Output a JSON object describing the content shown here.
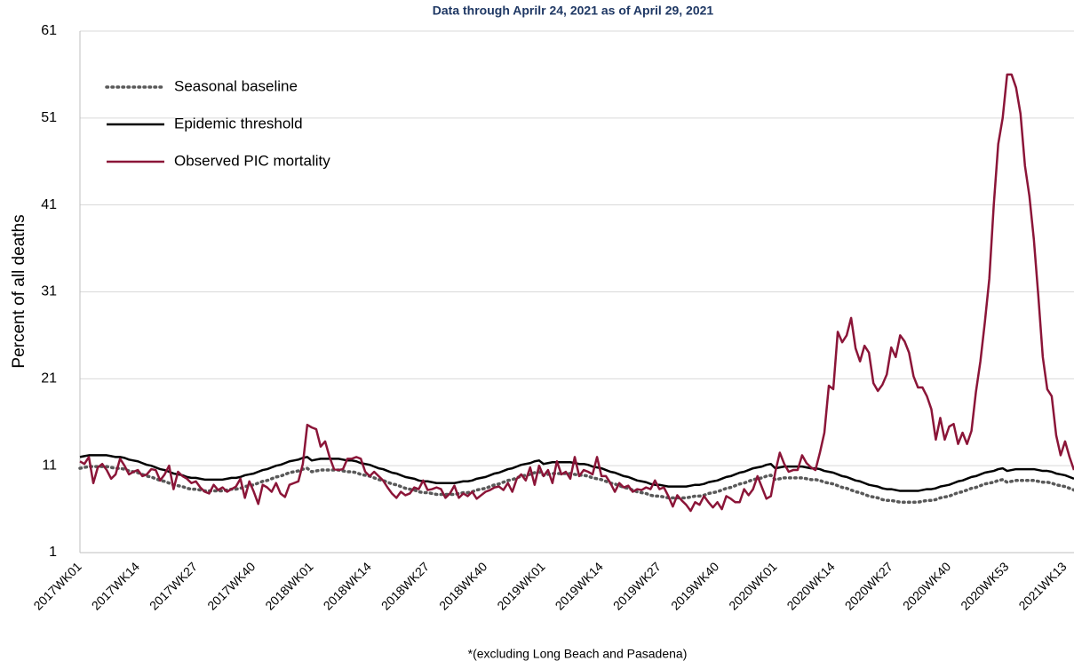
{
  "chart_data": {
    "type": "line",
    "subtitle": "Data through Aprilr 24, 2021 as of April 29, 2021",
    "y_label": "Percent of all deaths",
    "footnote": "*(excluding Long Beach and Pasadena)",
    "ylim": [
      1,
      61
    ],
    "yticks": [
      1,
      11,
      21,
      31,
      41,
      51,
      61
    ],
    "grid": true,
    "legend": "upper left",
    "categories": [
      "2017WK01",
      null,
      null,
      null,
      null,
      null,
      null,
      null,
      null,
      null,
      null,
      null,
      null,
      "2017WK14",
      null,
      null,
      null,
      null,
      null,
      null,
      null,
      null,
      null,
      null,
      null,
      null,
      "2017WK27",
      null,
      null,
      null,
      null,
      null,
      null,
      null,
      null,
      null,
      null,
      null,
      null,
      "2017WK40",
      null,
      null,
      null,
      null,
      null,
      null,
      null,
      null,
      null,
      null,
      null,
      null,
      "2018WK01",
      null,
      null,
      null,
      null,
      null,
      null,
      null,
      null,
      null,
      null,
      null,
      null,
      "2018WK14",
      null,
      null,
      null,
      null,
      null,
      null,
      null,
      null,
      null,
      null,
      null,
      null,
      "2018WK27",
      null,
      null,
      null,
      null,
      null,
      null,
      null,
      null,
      null,
      null,
      null,
      null,
      "2018WK40",
      null,
      null,
      null,
      null,
      null,
      null,
      null,
      null,
      null,
      null,
      null,
      null,
      "2019WK01",
      null,
      null,
      null,
      null,
      null,
      null,
      null,
      null,
      null,
      null,
      null,
      null,
      "2019WK14",
      null,
      null,
      null,
      null,
      null,
      null,
      null,
      null,
      null,
      null,
      null,
      null,
      "2019WK27",
      null,
      null,
      null,
      null,
      null,
      null,
      null,
      null,
      null,
      null,
      null,
      null,
      "2019WK40",
      null,
      null,
      null,
      null,
      null,
      null,
      null,
      null,
      null,
      null,
      null,
      null,
      "2020WK01",
      null,
      null,
      null,
      null,
      null,
      null,
      null,
      null,
      null,
      null,
      null,
      null,
      "2020WK14",
      null,
      null,
      null,
      null,
      null,
      null,
      null,
      null,
      null,
      null,
      null,
      null,
      "2020WK27",
      null,
      null,
      null,
      null,
      null,
      null,
      null,
      null,
      null,
      null,
      null,
      null,
      "2020WK40",
      null,
      null,
      null,
      null,
      null,
      null,
      null,
      null,
      null,
      null,
      null,
      null,
      "2020WK53",
      null,
      null,
      null,
      null,
      null,
      null,
      null,
      null,
      null,
      null,
      null,
      null,
      "2021WK13",
      null,
      null
    ],
    "series": [
      {
        "name": "Seasonal baseline",
        "color": "#595959",
        "dash": "dotted",
        "values": [
          10.7,
          10.8,
          10.9,
          10.9,
          10.9,
          10.9,
          10.9,
          10.8,
          10.7,
          10.7,
          10.6,
          10.4,
          10.3,
          10.2,
          10.0,
          9.8,
          9.7,
          9.5,
          9.3,
          9.2,
          9.0,
          8.8,
          8.7,
          8.6,
          8.4,
          8.3,
          8.3,
          8.2,
          8.1,
          8.1,
          8.1,
          8.1,
          8.1,
          8.2,
          8.3,
          8.3,
          8.4,
          8.6,
          8.7,
          8.8,
          9.0,
          9.2,
          9.3,
          9.5,
          9.7,
          9.8,
          10.0,
          10.2,
          10.3,
          10.4,
          10.6,
          10.7,
          10.3,
          10.4,
          10.5,
          10.5,
          10.5,
          10.5,
          10.5,
          10.4,
          10.3,
          10.3,
          10.2,
          10.0,
          9.9,
          9.8,
          9.6,
          9.4,
          9.3,
          9.1,
          8.9,
          8.8,
          8.6,
          8.4,
          8.3,
          8.2,
          8.0,
          7.9,
          7.9,
          7.8,
          7.7,
          7.7,
          7.7,
          7.7,
          7.7,
          7.8,
          7.9,
          7.9,
          8.0,
          8.2,
          8.3,
          8.4,
          8.6,
          8.8,
          8.9,
          9.1,
          9.3,
          9.4,
          9.6,
          9.8,
          9.9,
          10.0,
          10.2,
          10.3,
          9.9,
          10.0,
          10.1,
          10.1,
          10.1,
          10.1,
          10.1,
          10.0,
          9.9,
          9.9,
          9.8,
          9.6,
          9.5,
          9.4,
          9.2,
          9.0,
          8.9,
          8.7,
          8.5,
          8.4,
          8.2,
          8.0,
          7.9,
          7.8,
          7.6,
          7.5,
          7.5,
          7.4,
          7.3,
          7.3,
          7.3,
          7.3,
          7.3,
          7.4,
          7.5,
          7.5,
          7.6,
          7.8,
          7.9,
          8.0,
          8.2,
          8.4,
          8.5,
          8.7,
          8.9,
          9.0,
          9.2,
          9.4,
          9.5,
          9.6,
          9.8,
          9.9,
          9.4,
          9.5,
          9.6,
          9.6,
          9.6,
          9.6,
          9.6,
          9.5,
          9.4,
          9.4,
          9.3,
          9.1,
          9.0,
          8.9,
          8.7,
          8.5,
          8.4,
          8.2,
          8.0,
          7.9,
          7.7,
          7.5,
          7.4,
          7.3,
          7.1,
          7.0,
          7.0,
          6.9,
          6.8,
          6.8,
          6.8,
          6.8,
          6.8,
          6.9,
          7.0,
          7.0,
          7.1,
          7.3,
          7.4,
          7.5,
          7.7,
          7.9,
          8.0,
          8.2,
          8.4,
          8.5,
          8.7,
          8.9,
          9.0,
          9.1,
          9.3,
          9.4,
          9.1,
          9.2,
          9.3,
          9.3,
          9.3,
          9.3,
          9.3,
          9.2,
          9.1,
          9.1,
          9.0,
          8.8,
          8.7,
          8.6,
          8.4,
          8.2
        ]
      },
      {
        "name": "Epidemic threshold",
        "color": "#000000",
        "dash": "solid",
        "values": [
          12.0,
          12.1,
          12.2,
          12.2,
          12.2,
          12.2,
          12.2,
          12.1,
          12.0,
          12.0,
          11.9,
          11.7,
          11.6,
          11.5,
          11.3,
          11.1,
          11.0,
          10.8,
          10.6,
          10.5,
          10.3,
          10.1,
          10.0,
          9.9,
          9.7,
          9.6,
          9.6,
          9.5,
          9.4,
          9.4,
          9.4,
          9.4,
          9.4,
          9.5,
          9.6,
          9.6,
          9.7,
          9.9,
          10.0,
          10.1,
          10.3,
          10.5,
          10.6,
          10.8,
          11.0,
          11.1,
          11.3,
          11.5,
          11.6,
          11.7,
          11.9,
          12.0,
          11.6,
          11.7,
          11.8,
          11.8,
          11.8,
          11.8,
          11.8,
          11.7,
          11.6,
          11.6,
          11.5,
          11.3,
          11.2,
          11.1,
          10.9,
          10.7,
          10.6,
          10.4,
          10.2,
          10.1,
          9.9,
          9.7,
          9.6,
          9.5,
          9.3,
          9.2,
          9.2,
          9.1,
          9.0,
          9.0,
          9.0,
          9.0,
          9.0,
          9.1,
          9.2,
          9.2,
          9.3,
          9.5,
          9.6,
          9.7,
          9.9,
          10.1,
          10.2,
          10.4,
          10.6,
          10.7,
          10.9,
          11.1,
          11.2,
          11.3,
          11.5,
          11.6,
          11.2,
          11.3,
          11.4,
          11.4,
          11.4,
          11.4,
          11.4,
          11.3,
          11.2,
          11.2,
          11.1,
          10.9,
          10.8,
          10.7,
          10.5,
          10.3,
          10.2,
          10.0,
          9.8,
          9.7,
          9.5,
          9.3,
          9.2,
          9.1,
          8.9,
          8.8,
          8.8,
          8.7,
          8.6,
          8.6,
          8.6,
          8.6,
          8.6,
          8.7,
          8.8,
          8.8,
          8.9,
          9.1,
          9.2,
          9.3,
          9.5,
          9.7,
          9.8,
          10.0,
          10.2,
          10.3,
          10.5,
          10.7,
          10.8,
          10.9,
          11.1,
          11.2,
          10.7,
          10.8,
          10.9,
          10.9,
          10.9,
          10.9,
          10.9,
          10.8,
          10.7,
          10.7,
          10.6,
          10.4,
          10.3,
          10.2,
          10.0,
          9.8,
          9.7,
          9.5,
          9.3,
          9.2,
          9.0,
          8.8,
          8.7,
          8.6,
          8.4,
          8.3,
          8.3,
          8.2,
          8.1,
          8.1,
          8.1,
          8.1,
          8.1,
          8.2,
          8.3,
          8.3,
          8.4,
          8.6,
          8.7,
          8.8,
          9.0,
          9.2,
          9.3,
          9.5,
          9.7,
          9.8,
          10.0,
          10.2,
          10.3,
          10.4,
          10.6,
          10.7,
          10.4,
          10.5,
          10.6,
          10.6,
          10.6,
          10.6,
          10.6,
          10.5,
          10.4,
          10.4,
          10.3,
          10.1,
          10.0,
          9.9,
          9.7,
          9.5
        ]
      },
      {
        "name": "Observed PIC mortality",
        "color": "#8b1538",
        "dash": "solid",
        "values": [
          11.5,
          11.2,
          12.0,
          9.0,
          10.8,
          11.2,
          10.5,
          9.5,
          10.0,
          11.8,
          11.0,
          10.0,
          10.3,
          10.5,
          9.8,
          10.0,
          10.6,
          10.5,
          9.3,
          10.0,
          11.0,
          8.3,
          10.3,
          9.8,
          9.5,
          9.0,
          9.2,
          8.5,
          8.0,
          7.8,
          8.8,
          8.2,
          8.5,
          8.0,
          8.3,
          8.6,
          9.5,
          7.3,
          9.2,
          8.0,
          6.6,
          8.8,
          8.5,
          8.0,
          9.0,
          7.8,
          7.4,
          8.8,
          9.0,
          9.2,
          11.2,
          15.7,
          15.4,
          15.2,
          13.2,
          13.8,
          12.0,
          10.6,
          10.5,
          10.6,
          11.8,
          11.8,
          12.0,
          11.8,
          10.3,
          9.8,
          10.3,
          9.8,
          9.3,
          8.5,
          7.8,
          7.3,
          8.0,
          7.6,
          7.8,
          8.5,
          8.3,
          9.3,
          8.2,
          8.3,
          8.5,
          8.3,
          7.3,
          7.8,
          8.7,
          7.3,
          7.8,
          7.5,
          8.0,
          7.2,
          7.6,
          8.0,
          8.2,
          8.5,
          8.6,
          8.2,
          9.0,
          8.0,
          9.5,
          10.0,
          9.3,
          10.8,
          8.8,
          11.0,
          9.8,
          10.5,
          9.0,
          11.5,
          10.0,
          10.3,
          9.5,
          12.0,
          9.8,
          10.5,
          10.3,
          10.0,
          12.0,
          9.8,
          9.8,
          9.0,
          8.0,
          9.0,
          8.5,
          8.7,
          8.0,
          8.3,
          8.2,
          8.5,
          8.3,
          9.3,
          8.3,
          8.5,
          7.5,
          6.3,
          7.6,
          7.0,
          6.5,
          5.8,
          6.8,
          6.5,
          7.5,
          6.8,
          6.2,
          6.8,
          6.0,
          7.5,
          7.2,
          6.8,
          6.8,
          8.3,
          7.6,
          8.3,
          9.8,
          8.5,
          7.2,
          7.5,
          10.3,
          12.5,
          11.2,
          10.3,
          10.5,
          10.5,
          12.2,
          11.3,
          10.8,
          10.5,
          12.5,
          14.8,
          20.2,
          19.8,
          26.4,
          25.2,
          26.0,
          28.0,
          24.5,
          23.0,
          24.8,
          24.0,
          20.5,
          19.6,
          20.3,
          21.5,
          24.6,
          23.5,
          26.0,
          25.3,
          24.0,
          21.3,
          20.0,
          20.0,
          19.0,
          17.5,
          14.0,
          16.5,
          14.0,
          15.5,
          15.8,
          13.5,
          14.8,
          13.5,
          15.0,
          19.5,
          23.0,
          27.5,
          32.5,
          41.0,
          48.0,
          51.0,
          56.0,
          56.0,
          54.5,
          51.5,
          45.5,
          42.0,
          37.0,
          30.5,
          23.5,
          19.8,
          19.0,
          14.5,
          12.2,
          13.8,
          12.0,
          10.5
        ]
      }
    ]
  }
}
